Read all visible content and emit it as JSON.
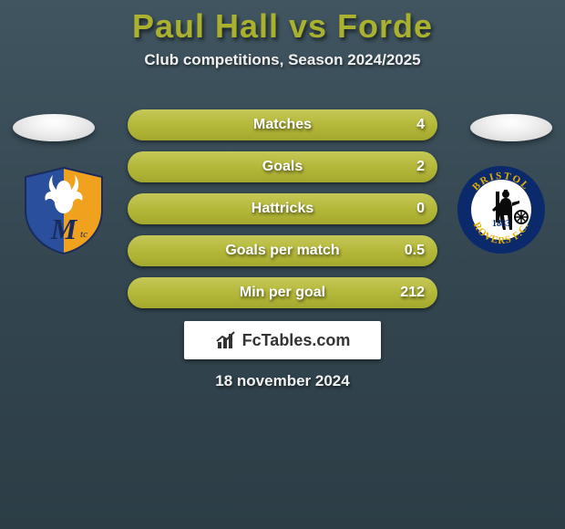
{
  "title": "Paul Hall vs Forde",
  "subtitle": "Club competitions, Season 2024/2025",
  "accent_color": "#aab12f",
  "bar_fill_color_top": "#c4c957",
  "bar_fill_color_mid": "#b4b83a",
  "bar_fill_color_bot": "#a4a82d",
  "bar_bg_color": "#35464f",
  "background_top": "#405560",
  "background_bot": "#2c3d46",
  "bars": [
    {
      "label": "Matches",
      "left": "",
      "right": "4",
      "fill_pct": 100
    },
    {
      "label": "Goals",
      "left": "",
      "right": "2",
      "fill_pct": 100
    },
    {
      "label": "Hattricks",
      "left": "",
      "right": "0",
      "fill_pct": 100
    },
    {
      "label": "Goals per match",
      "left": "",
      "right": "0.5",
      "fill_pct": 100
    },
    {
      "label": "Min per goal",
      "left": "",
      "right": "212",
      "fill_pct": 100
    }
  ],
  "brand": "FcTables.com",
  "footer_date": "18 november 2024",
  "left_club": {
    "name": "Mansfield Town",
    "badge_letter": "M",
    "badge_colors": {
      "left": "#2a4f9c",
      "right": "#f0a21f",
      "outline": "#ffffff"
    }
  },
  "right_club": {
    "name": "Bristol Rovers",
    "badge_year": "1883",
    "badge_colors": {
      "ring": "#0a2a6c",
      "ring_text": "#e8b000",
      "center": "#ffffff"
    }
  }
}
